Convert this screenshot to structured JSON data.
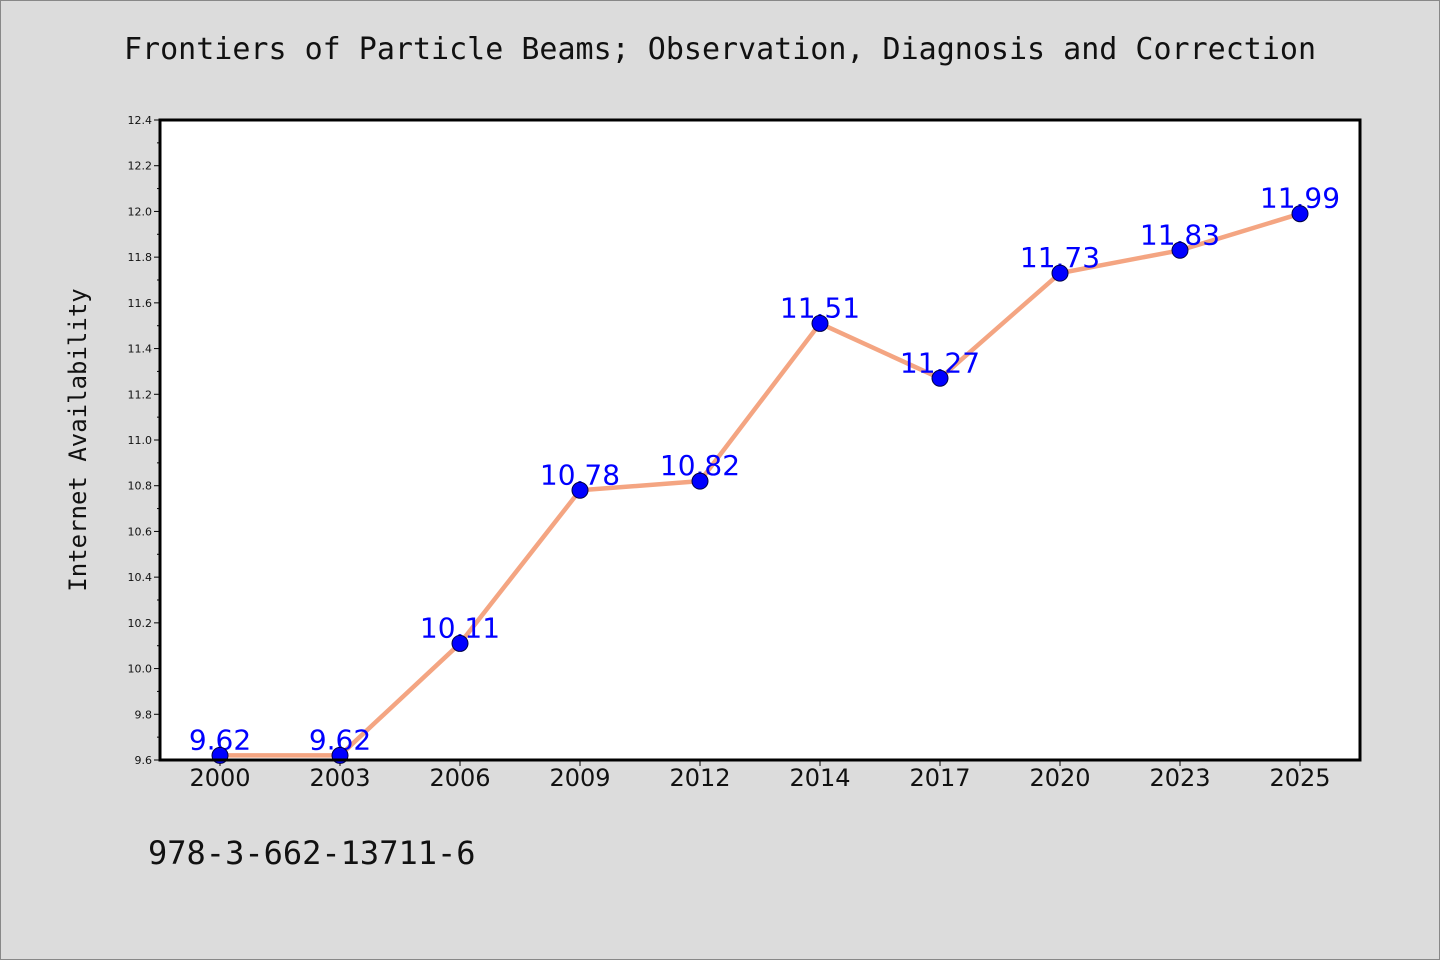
{
  "page": {
    "footer_id": "978-3-662-13711-6"
  },
  "chart_data": {
    "type": "line",
    "title": "Frontiers of Particle Beams; Observation, Diagnosis and Correction",
    "xlabel": "",
    "ylabel": "Internet Availability",
    "categories": [
      "2000",
      "2003",
      "2006",
      "2009",
      "2012",
      "2014",
      "2017",
      "2020",
      "2023",
      "2025"
    ],
    "series": [
      {
        "values": [
          9.62,
          9.62,
          10.11,
          10.78,
          10.82,
          11.51,
          11.27,
          11.73,
          11.83,
          11.99
        ],
        "value_labels": [
          "9.62",
          "9.62",
          "10.11",
          "10.78",
          "10.82",
          "11.51",
          "11.27",
          "11.73",
          "11.83",
          "11.99"
        ],
        "line_color": "#f4a582",
        "marker_color": "#0000ff"
      }
    ],
    "ylim": [
      9.6,
      12.4
    ],
    "yticks": [
      9.6,
      9.8,
      10.0,
      10.2,
      10.4,
      10.6,
      10.8,
      11.0,
      11.2,
      11.4,
      11.6,
      11.8,
      12.0,
      12.2,
      12.4
    ],
    "ytick_labels": [
      "9.6",
      "9.8",
      "10.0",
      "10.2",
      "10.4",
      "10.6",
      "10.8",
      "11.0",
      "11.2",
      "11.4",
      "11.6",
      "11.8",
      "12.0",
      "12.2",
      "12.4"
    ],
    "grid": false,
    "legend": "none",
    "colors": {
      "background": "#dcdcdc",
      "plot_background": "#ffffff",
      "label_color": "#0000ff"
    }
  }
}
